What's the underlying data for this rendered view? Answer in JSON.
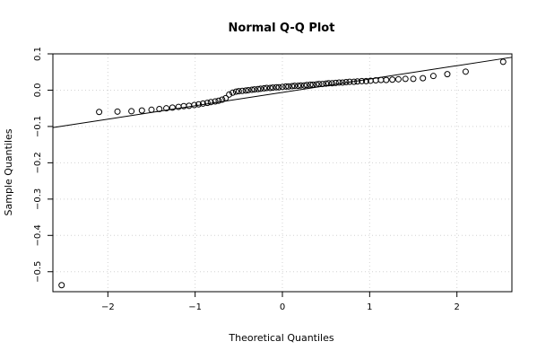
{
  "chart_data": {
    "type": "scatter",
    "title": "Normal Q-Q Plot",
    "xlabel": "Theoretical Quantiles",
    "ylabel": "Sample Quantiles",
    "xlim": [
      -2.63,
      2.63
    ],
    "ylim": [
      -0.555,
      0.1
    ],
    "xticks": [
      -2,
      -1,
      0,
      1,
      2
    ],
    "xtick_labels": [
      "−2",
      "−1",
      "0",
      "1",
      "2"
    ],
    "yticks": [
      -0.5,
      -0.4,
      -0.3,
      -0.2,
      -0.1,
      0.0,
      0.1
    ],
    "ytick_labels": [
      "−0.5",
      "−0.4",
      "−0.3",
      "−0.2",
      "−0.1",
      "0.0",
      "0.1"
    ],
    "grid": true,
    "marker": "open-circle",
    "reference_line": {
      "slope": 0.0368,
      "intercept": -0.0062
    },
    "series": [
      {
        "x": [
          -2.53,
          -2.1,
          -1.89,
          -1.73,
          -1.61,
          -1.5,
          -1.41,
          -1.33,
          -1.26,
          -1.19,
          -1.13,
          -1.07,
          -1.01,
          -0.96,
          -0.91,
          -0.86,
          -0.82,
          -0.77,
          -0.73,
          -0.69,
          -0.65,
          -0.61,
          -0.57,
          -0.53,
          -0.5,
          -0.46,
          -0.42,
          -0.39,
          -0.35,
          -0.32,
          -0.28,
          -0.25,
          -0.21,
          -0.18,
          -0.14,
          -0.11,
          -0.07,
          -0.04,
          0.0,
          0.04,
          0.07,
          0.11,
          0.14,
          0.18,
          0.21,
          0.25,
          0.28,
          0.32,
          0.35,
          0.39,
          0.42,
          0.46,
          0.5,
          0.53,
          0.57,
          0.61,
          0.65,
          0.69,
          0.73,
          0.77,
          0.82,
          0.86,
          0.91,
          0.96,
          1.01,
          1.07,
          1.13,
          1.19,
          1.26,
          1.33,
          1.41,
          1.5,
          1.61,
          1.73,
          1.89,
          2.1,
          2.53
        ],
        "y": [
          -0.537,
          -0.06,
          -0.059,
          -0.058,
          -0.056,
          -0.054,
          -0.052,
          -0.05,
          -0.048,
          -0.046,
          -0.044,
          -0.043,
          -0.041,
          -0.039,
          -0.037,
          -0.035,
          -0.033,
          -0.031,
          -0.029,
          -0.026,
          -0.022,
          -0.012,
          -0.007,
          -0.004,
          -0.003,
          -0.002,
          -0.001,
          0.0,
          0.001,
          0.002,
          0.003,
          0.004,
          0.005,
          0.006,
          0.006,
          0.007,
          0.008,
          0.008,
          0.009,
          0.01,
          0.01,
          0.011,
          0.012,
          0.012,
          0.013,
          0.013,
          0.014,
          0.015,
          0.015,
          0.016,
          0.017,
          0.017,
          0.018,
          0.019,
          0.019,
          0.02,
          0.021,
          0.021,
          0.022,
          0.023,
          0.023,
          0.024,
          0.025,
          0.025,
          0.026,
          0.027,
          0.028,
          0.028,
          0.029,
          0.03,
          0.031,
          0.031,
          0.033,
          0.039,
          0.044,
          0.051,
          0.078
        ]
      }
    ]
  }
}
